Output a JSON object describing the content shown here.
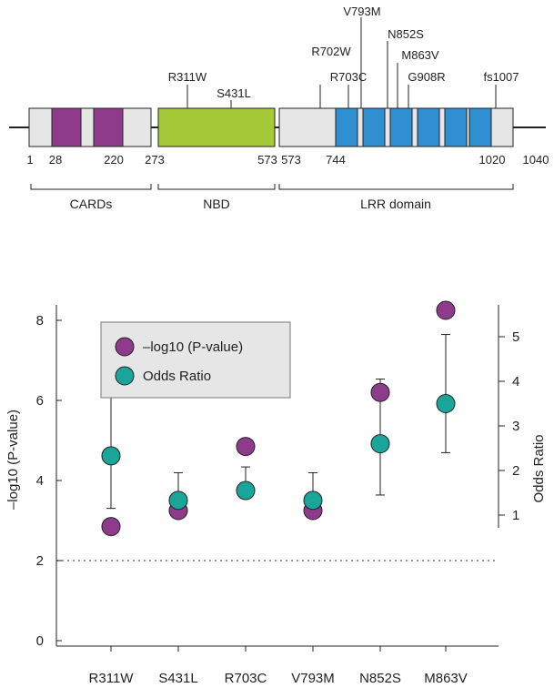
{
  "domain_diagram": {
    "positions": [
      "1",
      "28",
      "220",
      "273",
      "573",
      "744",
      "1020",
      "1040"
    ],
    "mutations": [
      "R311W",
      "S431L",
      "R702W",
      "R703C",
      "V793M",
      "N852S",
      "M863V",
      "G908R",
      "fs1007"
    ],
    "domains": [
      "CARDs",
      "NBD",
      "LRR domain"
    ],
    "colors": {
      "card": "#8e3b8c",
      "nbd": "#a6c93a",
      "lrr": "#2f8fd0",
      "backbone": "#e6e6e6"
    }
  },
  "chart_data": {
    "type": "scatter",
    "categories": [
      "R311W",
      "S431L",
      "R703C",
      "V793M",
      "N852S",
      "M863V"
    ],
    "ylabel": "–log10 (P-value)",
    "y2label": "Odds Ratio",
    "ylim": [
      0,
      8.5
    ],
    "y2lim": [
      0.8,
      5.3
    ],
    "yticks": [
      "0",
      "2",
      "4",
      "6",
      "8"
    ],
    "y2ticks": [
      "1",
      "2",
      "3",
      "4",
      "5"
    ],
    "threshold": 2,
    "series": [
      {
        "name": "–log10 (P-value)",
        "axis": "left",
        "color": "#8e3b8c",
        "values": [
          2.85,
          3.25,
          4.85,
          3.25,
          6.2,
          8.25
        ]
      },
      {
        "name": "Odds Ratio",
        "axis": "right",
        "color": "#1aa59a",
        "values": [
          2.33,
          1.33,
          1.55,
          1.33,
          2.6,
          3.5
        ],
        "ci_low": [
          1.15,
          1.15,
          1.45,
          1.15,
          1.45,
          2.4
        ],
        "ci_high": [
          3.9,
          1.95,
          2.08,
          1.95,
          4.05,
          5.05
        ]
      }
    ],
    "legend": {
      "position": "top-left",
      "entries": [
        "–log10 (P-value)",
        "Odds Ratio"
      ]
    }
  }
}
